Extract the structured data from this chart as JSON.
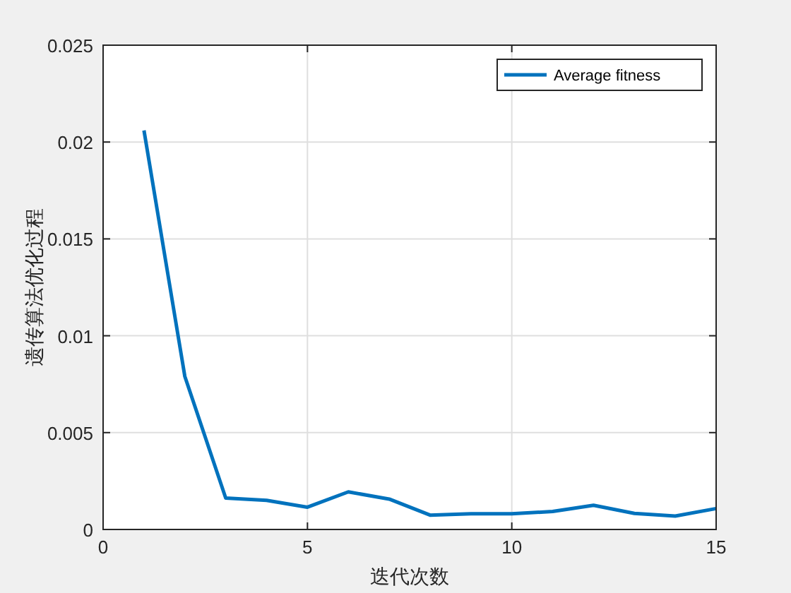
{
  "chart_data": {
    "type": "line",
    "xlabel": "迭代次数",
    "ylabel": "遗传算法优化过程",
    "x": [
      1,
      2,
      3,
      4,
      5,
      6,
      7,
      8,
      9,
      10,
      11,
      12,
      13,
      14,
      15
    ],
    "series": [
      {
        "name": "Average fitness",
        "color": "#0072bd",
        "values": [
          0.0206,
          0.0079,
          0.00162,
          0.0015,
          0.00115,
          0.00194,
          0.00157,
          0.00074,
          0.00081,
          0.00081,
          0.00093,
          0.00125,
          0.00083,
          0.00069,
          0.00108
        ]
      }
    ],
    "xlim": [
      0,
      15
    ],
    "xticks": [
      0,
      5,
      10,
      15
    ],
    "ylim": [
      0,
      0.025
    ],
    "yticks": [
      0,
      0.005,
      0.01,
      0.015,
      0.02,
      0.025
    ],
    "grid": true,
    "legend": "top right",
    "marker": "none",
    "line_style": "solid"
  }
}
